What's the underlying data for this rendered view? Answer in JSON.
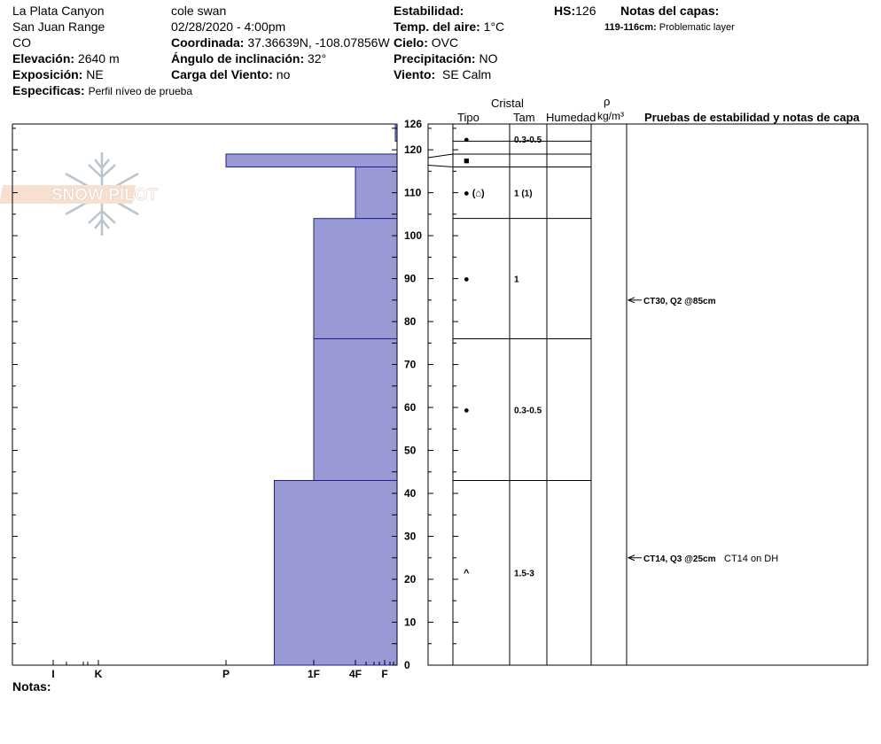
{
  "header": {
    "location": "La Plata Canyon",
    "range": "San Juan Range",
    "state": "CO",
    "elevation_label": "Elevación:",
    "elevation_value": "2640 m",
    "aspect_label": "Exposición:",
    "aspect_value": "NE",
    "specifics_label": "Especificas:",
    "specifics_value": "Perfil níveo de prueba",
    "observer": "cole  swan",
    "datetime": "02/28/2020 - 4:00pm",
    "coord_label": "Coordinada:",
    "coord_value": "37.36639N, -108.07856W",
    "slope_label": "Ángulo de inclinación:",
    "slope_value": "32°",
    "wind_load_label": "Carga del Viento:",
    "wind_load_value": "no",
    "stability_label": "Estabilidad:",
    "air_temp_label": "Temp. del aire:",
    "air_temp_value": "1°C",
    "sky_label": "Cielo:",
    "sky_value": "OVC",
    "precip_label": "Precipitación:",
    "precip_value": "NO",
    "wind_label": "Viento:",
    "wind_value": "SE Calm",
    "hs_label": "HS:",
    "hs_value": "126",
    "layer_notes_title": "Notas del capas:",
    "layer_note_range": "119-116cm:",
    "layer_note_text": "Problematic layer",
    "notes_label": "Notas:"
  },
  "logo_text": "SNOW PILOT",
  "columns": {
    "crystal": "Cristal",
    "type": "Tipo",
    "size": "Tam",
    "moisture": "Humedad",
    "density_symbol": "ρ",
    "density_unit": "kg/m³",
    "tests": "Pruebas de estabilidad y notas de capa"
  },
  "chart_data": {
    "type": "bar",
    "title": "",
    "xlabel": "",
    "ylabel": "",
    "ylim": [
      0,
      126
    ],
    "y_ticks": [
      0,
      10,
      20,
      30,
      40,
      50,
      60,
      70,
      80,
      90,
      100,
      110,
      120,
      126
    ],
    "hardness_ticks": [
      {
        "label": "I",
        "value": 1
      },
      {
        "label": "K",
        "value": 2
      },
      {
        "label": "P",
        "value": 3
      },
      {
        "label": "1F",
        "value": 4
      },
      {
        "label": "4F",
        "value": 5
      },
      {
        "label": "F",
        "value": 6
      }
    ],
    "layers": [
      {
        "top": 126,
        "bottom": 122,
        "hardness": 6.3
      },
      {
        "top": 122,
        "bottom": 119,
        "hardness": 6.4
      },
      {
        "top": 119,
        "bottom": 116,
        "hardness": 3.0
      },
      {
        "top": 116,
        "bottom": 104,
        "hardness": 5.0
      },
      {
        "top": 104,
        "bottom": 76,
        "hardness": 4.0
      },
      {
        "top": 76,
        "bottom": 43,
        "hardness": 4.0
      },
      {
        "top": 43,
        "bottom": 0,
        "hardness": 3.55
      }
    ],
    "grains": [
      {
        "y": 122.5,
        "glyph": "●",
        "size": "0.3-0.5"
      },
      {
        "y": 117.5,
        "glyph": "■",
        "size": ""
      },
      {
        "y": 110,
        "glyph": "● (⌂)",
        "size": "1 (1)"
      },
      {
        "y": 90,
        "glyph": "●",
        "size": "1"
      },
      {
        "y": 59.5,
        "glyph": "●",
        "size": "0.3-0.5"
      },
      {
        "y": 21.5,
        "glyph": "^",
        "size": "1.5-3"
      }
    ],
    "tests": [
      {
        "y": 85,
        "label": "CT30, Q2 @85cm",
        "note": ""
      },
      {
        "y": 25,
        "label": "CT14, Q3 @25cm",
        "note": "CT14 on DH"
      }
    ]
  }
}
